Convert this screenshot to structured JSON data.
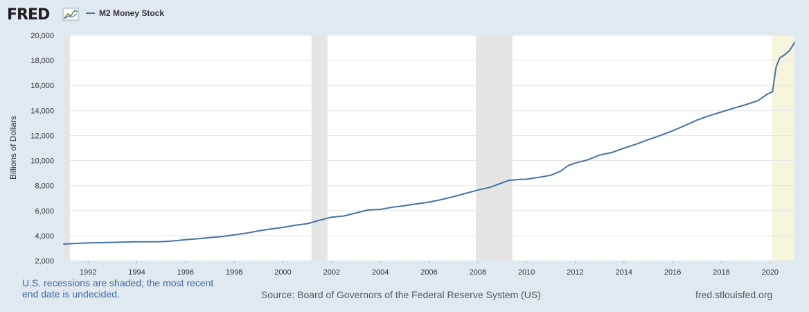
{
  "header": {
    "logo_text": "FRED",
    "legend_label": "M2 Money Stock"
  },
  "colors": {
    "series": "#4572a7",
    "recession": "#e5e5e5",
    "current_recession": "#f7f4dd",
    "plot_bg": "#ffffff",
    "page_bg": "#e1e9f0",
    "grid": "#e6e6e6"
  },
  "footer": {
    "note": "U.S. recessions are shaded; the most recent end date is undecided.",
    "source": "Source: Board of Governors of the Federal Reserve System (US)",
    "url": "fred.stlouisfed.org"
  },
  "chart_data": {
    "type": "line",
    "title": "",
    "xlabel": "",
    "ylabel": "Billions of Dollars",
    "xlim": [
      1991.0,
      2021.0
    ],
    "ylim": [
      2000,
      20000
    ],
    "yticks": [
      2000,
      4000,
      6000,
      8000,
      10000,
      12000,
      14000,
      16000,
      18000,
      20000
    ],
    "ytick_labels": [
      "2,000",
      "4,000",
      "6,000",
      "8,000",
      "10,000",
      "12,000",
      "14,000",
      "16,000",
      "18,000",
      "20,000"
    ],
    "xticks": [
      1992,
      1994,
      1996,
      1998,
      2000,
      2002,
      2004,
      2006,
      2008,
      2010,
      2012,
      2014,
      2016,
      2018,
      2020
    ],
    "grid": true,
    "legend_position": "top-left",
    "recessions": [
      {
        "start": 1991.0,
        "end": 1991.25
      },
      {
        "start": 2001.17,
        "end": 2001.83
      },
      {
        "start": 2007.92,
        "end": 2009.42
      },
      {
        "start": 2020.08,
        "end": 2021.0,
        "undecided": true
      }
    ],
    "series": [
      {
        "name": "M2 Money Stock",
        "x": [
          1991.0,
          1991.5,
          1992.0,
          1992.5,
          1993.0,
          1993.5,
          1994.0,
          1994.5,
          1995.0,
          1995.5,
          1996.0,
          1996.5,
          1997.0,
          1997.5,
          1998.0,
          1998.5,
          1999.0,
          1999.5,
          2000.0,
          2000.5,
          2001.0,
          2001.5,
          2002.0,
          2002.5,
          2003.0,
          2003.5,
          2004.0,
          2004.5,
          2005.0,
          2005.5,
          2006.0,
          2006.5,
          2007.0,
          2007.5,
          2008.0,
          2008.5,
          2008.9,
          2009.25,
          2009.75,
          2010.0,
          2010.5,
          2011.0,
          2011.4,
          2011.7,
          2012.0,
          2012.5,
          2013.0,
          2013.5,
          2014.0,
          2014.5,
          2015.0,
          2015.5,
          2016.0,
          2016.5,
          2017.0,
          2017.5,
          2018.0,
          2018.5,
          2019.0,
          2019.5,
          2019.9,
          2020.1,
          2020.25,
          2020.4,
          2020.6,
          2020.8,
          2021.0
        ],
        "y": [
          3330,
          3380,
          3420,
          3440,
          3460,
          3490,
          3510,
          3510,
          3520,
          3580,
          3680,
          3750,
          3850,
          3930,
          4060,
          4200,
          4380,
          4530,
          4660,
          4830,
          4960,
          5230,
          5480,
          5570,
          5810,
          6050,
          6100,
          6270,
          6400,
          6540,
          6680,
          6880,
          7110,
          7380,
          7640,
          7860,
          8150,
          8400,
          8500,
          8510,
          8660,
          8830,
          9150,
          9590,
          9800,
          10050,
          10440,
          10640,
          10990,
          11310,
          11670,
          12010,
          12380,
          12790,
          13230,
          13580,
          13880,
          14180,
          14460,
          14790,
          15320,
          15490,
          17500,
          18200,
          18450,
          18800,
          19400
        ]
      }
    ]
  }
}
